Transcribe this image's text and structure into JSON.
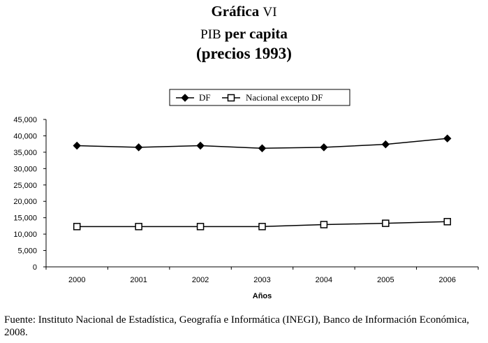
{
  "chart_data": {
    "type": "line",
    "title": "Gráfica VI",
    "subtitle_line1": "PIB per capita",
    "subtitle_line2": "(precios 1993)",
    "xlabel": "Años",
    "ylabel": "",
    "categories": [
      "2000",
      "2001",
      "2002",
      "2003",
      "2004",
      "2005",
      "2006"
    ],
    "ylim": [
      0,
      45000
    ],
    "yticks": [
      "0",
      "5,000",
      "10,000",
      "15,000",
      "20,000",
      "25,000",
      "30,000",
      "35,000",
      "40,000",
      "45,000"
    ],
    "grid": false,
    "legend_position": "top-center",
    "series": [
      {
        "name": "DF",
        "marker": "filled-diamond",
        "values": [
          37000,
          36500,
          37000,
          36200,
          36500,
          37400,
          39200
        ]
      },
      {
        "name": "Nacional excepto DF",
        "marker": "open-square",
        "values": [
          12300,
          12300,
          12300,
          12300,
          12900,
          13300,
          13800
        ]
      }
    ]
  },
  "header": {
    "title_word": "Gráfica",
    "title_numeral": "VI",
    "sub1_abbr": "PIB",
    "sub1_rest": " per capita",
    "sub2": "(precios 1993)"
  },
  "source": {
    "part1": "Fuente: Instituto Nacional de Estadística, Geografía e Informática (",
    "abbr": "INEGI",
    "part2": "), Banco de Información Económica, 2008."
  }
}
